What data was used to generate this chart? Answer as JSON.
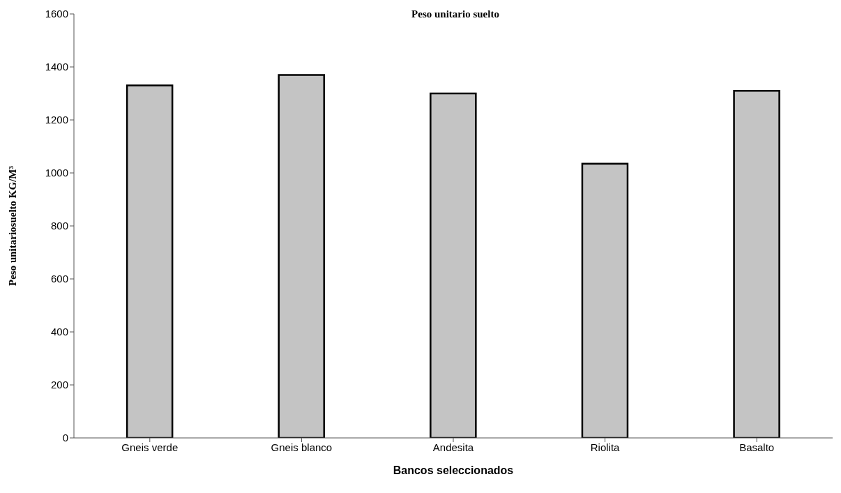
{
  "chart_data": {
    "type": "bar",
    "title": "Peso unitario suelto",
    "xlabel": "Bancos seleccionados",
    "ylabel": "Peso unitariosuelto KG/M³",
    "categories": [
      "Gneis verde",
      "Gneis blanco",
      "Andesita",
      "Riolita",
      "Basalto"
    ],
    "values": [
      1330,
      1370,
      1300,
      1035,
      1310
    ],
    "color": "#c4c4c4",
    "ylim": [
      0,
      1600
    ],
    "yticks": [
      0,
      200,
      400,
      600,
      800,
      1000,
      1200,
      1400,
      1600
    ],
    "grid": false,
    "legend": false
  }
}
